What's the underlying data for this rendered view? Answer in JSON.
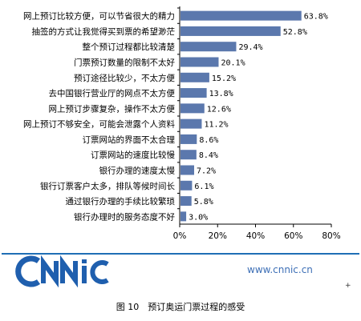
{
  "chart_data": {
    "type": "bar",
    "orientation": "horizontal",
    "categories": [
      "网上预订比较方便，可以节省很大的精力",
      "抽签的方式让我觉得买到票的希望渺茫",
      "整个预订过程都比较清楚",
      "门票预订数量的限制不太好",
      "预订途径比较少，不太方便",
      "去中国银行营业厅的网点不太方便",
      "网上预订步骤复杂，操作不太方便",
      "网上预订不够安全，可能会泄露个人资料",
      "订票网站的界面不太合理",
      "订票网站的速度比较慢",
      "银行办理的速度太慢",
      "银行订票客户太多，排队等候时间长",
      "通过银行办理的手续比较繁琐",
      "银行办理时的服务态度不好"
    ],
    "values": [
      63.8,
      52.8,
      29.4,
      20.1,
      15.2,
      13.8,
      12.6,
      11.2,
      8.6,
      8.4,
      7.2,
      6.1,
      5.8,
      3.0
    ],
    "value_labels": [
      "63.8%",
      "52.8%",
      "29.4%",
      "20.1%",
      "15.2%",
      "13.8%",
      "12.6%",
      "11.2%",
      "8.6%",
      "8.4%",
      "7.2%",
      "6.1%",
      "5.8%",
      "3.0%"
    ],
    "xlim": [
      0,
      80
    ],
    "xticks": [
      0,
      20,
      40,
      60,
      80
    ],
    "xtick_labels": [
      "0%",
      "20%",
      "40%",
      "60%",
      "80%"
    ],
    "bar_color": "#5b78ad",
    "grid": false
  },
  "logo": {
    "text": "CNNIC",
    "color": "#1f5fae"
  },
  "site_url": "www.cnnic.cn",
  "caption": "图 10　预订奥运门票过程的感受"
}
